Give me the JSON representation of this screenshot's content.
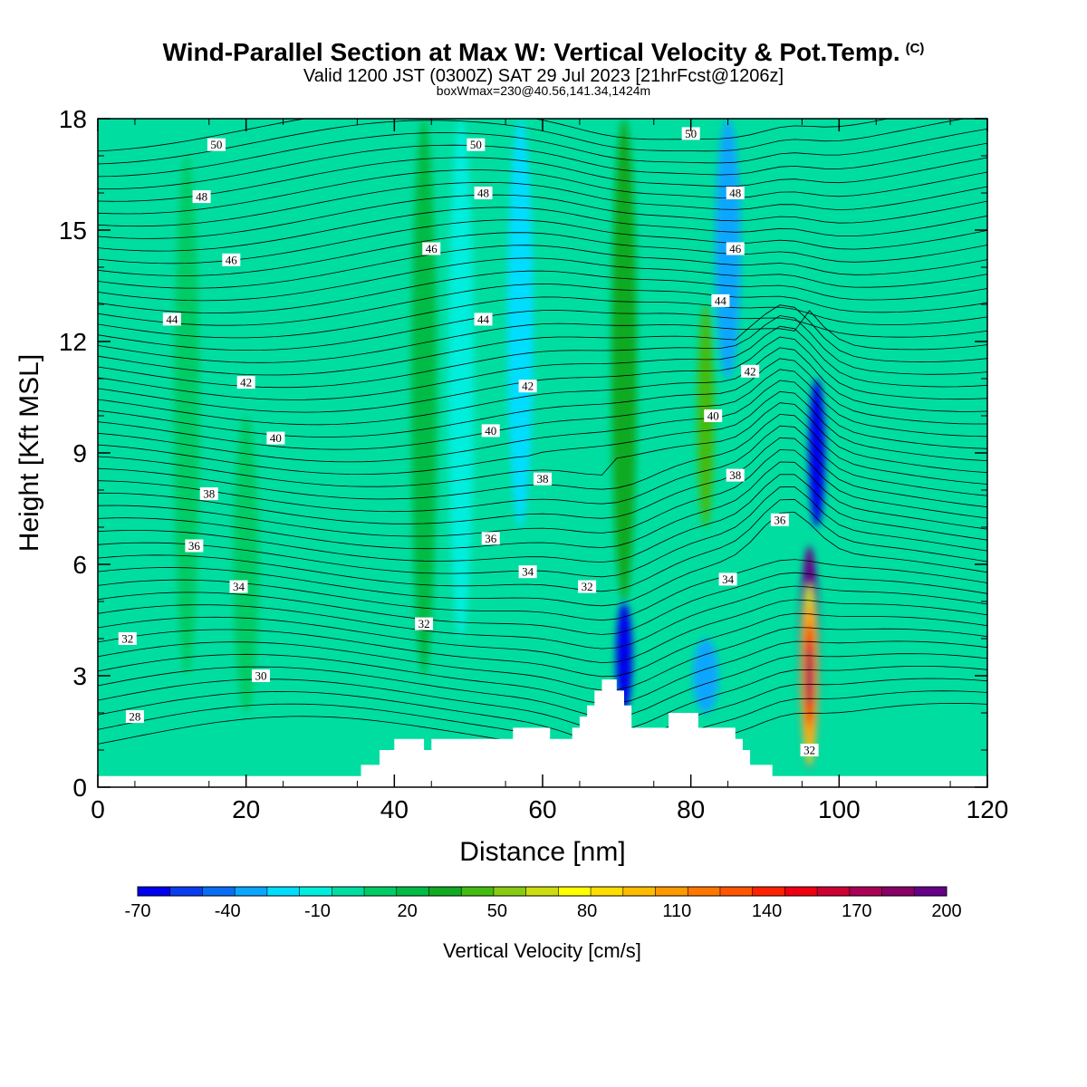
{
  "chart_data": {
    "type": "heatmap",
    "title": "Wind-Parallel Section at Max W: Vertical Velocity & Pot.Temp.",
    "copyright_mark": "(C)",
    "subtitle": "Valid 1200 JST (0300Z) SAT 29 Jul 2023 [21hrFcst@1206z]",
    "subtitle2": "boxWmax=230@40.56,141.34,1424m",
    "xlabel": "Distance [nm]",
    "ylabel": "Height [Kft MSL]",
    "xlim": [
      0,
      120
    ],
    "ylim": [
      0,
      18
    ],
    "x_ticks": [
      "0",
      "20",
      "40",
      "60",
      "80",
      "100",
      "120"
    ],
    "y_ticks": [
      "0",
      "3",
      "6",
      "9",
      "12",
      "15",
      "18"
    ],
    "colorbar": {
      "title": "Vertical Velocity [cm/s]",
      "tick_labels": [
        "-70",
        "-40",
        "-10",
        "20",
        "50",
        "80",
        "110",
        "140",
        "170",
        "200"
      ],
      "colors": [
        "#0000ee",
        "#0a3cf0",
        "#0a6ef5",
        "#0aa6ff",
        "#00ddff",
        "#00eedd",
        "#00dda0",
        "#00cc66",
        "#00bb44",
        "#11aa22",
        "#44bb11",
        "#88cc11",
        "#ccdd11",
        "#ffff00",
        "#ffdd00",
        "#ffbb00",
        "#ff9900",
        "#ff7700",
        "#ff5500",
        "#ff2200",
        "#ee0011",
        "#cc0033",
        "#aa0055",
        "#880066",
        "#660088"
      ]
    },
    "background_level_cm_s": 0,
    "velocity_features": [
      {
        "x": 12,
        "y_bottom": 3,
        "y_top": 17,
        "w_cm_s": 10
      },
      {
        "x": 20,
        "y_bottom": 2,
        "y_top": 10,
        "w_cm_s": 10
      },
      {
        "x": 44,
        "y_bottom": 3,
        "y_top": 18,
        "w_cm_s": 20
      },
      {
        "x": 49,
        "y_bottom": 4,
        "y_top": 18,
        "w_cm_s": -10
      },
      {
        "x": 57,
        "y_bottom": 7,
        "y_top": 18,
        "w_cm_s": -20
      },
      {
        "x": 71,
        "y_bottom": 2,
        "y_top": 5,
        "w_cm_s": -60
      },
      {
        "x": 71,
        "y_bottom": 5,
        "y_top": 18,
        "w_cm_s": 30
      },
      {
        "x": 82,
        "y_bottom": 2,
        "y_top": 4,
        "w_cm_s": -30
      },
      {
        "x": 82,
        "y_bottom": 7,
        "y_top": 13,
        "w_cm_s": 40
      },
      {
        "x": 85,
        "y_bottom": 11,
        "y_top": 18,
        "w_cm_s": -30
      },
      {
        "x": 96,
        "y_bottom": 0.5,
        "y_top": 6.5,
        "w_cm_s": 200
      },
      {
        "x": 97,
        "y_bottom": 7,
        "y_top": 11,
        "w_cm_s": -60
      }
    ],
    "terrain": [
      [
        0,
        0.3
      ],
      [
        35.5,
        0.3
      ],
      [
        35.5,
        0.6
      ],
      [
        38,
        0.6
      ],
      [
        38,
        1.0
      ],
      [
        40,
        1.0
      ],
      [
        40,
        1.3
      ],
      [
        44,
        1.3
      ],
      [
        44,
        1.0
      ],
      [
        45,
        1.0
      ],
      [
        45,
        1.3
      ],
      [
        56,
        1.3
      ],
      [
        56,
        1.6
      ],
      [
        61,
        1.6
      ],
      [
        61,
        1.3
      ],
      [
        64,
        1.3
      ],
      [
        64,
        1.6
      ],
      [
        65,
        1.6
      ],
      [
        65,
        1.9
      ],
      [
        66,
        1.9
      ],
      [
        66,
        2.2
      ],
      [
        67,
        2.2
      ],
      [
        67,
        2.6
      ],
      [
        68,
        2.6
      ],
      [
        68,
        2.9
      ],
      [
        70,
        2.9
      ],
      [
        70,
        2.6
      ],
      [
        71,
        2.6
      ],
      [
        71,
        2.2
      ],
      [
        72,
        2.2
      ],
      [
        72,
        1.6
      ],
      [
        77,
        1.6
      ],
      [
        77,
        2.0
      ],
      [
        81,
        2.0
      ],
      [
        81,
        1.6
      ],
      [
        86,
        1.6
      ],
      [
        86,
        1.3
      ],
      [
        87,
        1.3
      ],
      [
        87,
        1.0
      ],
      [
        88,
        1.0
      ],
      [
        88,
        0.6
      ],
      [
        91,
        0.6
      ],
      [
        91,
        0.3
      ],
      [
        120,
        0.3
      ]
    ],
    "theta_contours": [
      {
        "label": "28",
        "lx": 5,
        "ly": 1.9
      },
      {
        "label": "30",
        "lx": 22,
        "ly": 3.0
      },
      {
        "label": "32",
        "lx": 4,
        "ly": 4.0
      },
      {
        "label": "32",
        "lx": 44,
        "ly": 4.4
      },
      {
        "label": "32",
        "lx": 66,
        "ly": 5.4
      },
      {
        "label": "32",
        "lx": 96,
        "ly": 1.0
      },
      {
        "label": "34",
        "lx": 19,
        "ly": 5.4
      },
      {
        "label": "34",
        "lx": 58,
        "ly": 5.8
      },
      {
        "label": "34",
        "lx": 85,
        "ly": 5.6
      },
      {
        "label": "36",
        "lx": 13,
        "ly": 6.5
      },
      {
        "label": "36",
        "lx": 53,
        "ly": 6.7
      },
      {
        "label": "36",
        "lx": 92,
        "ly": 7.2
      },
      {
        "label": "38",
        "lx": 15,
        "ly": 7.9
      },
      {
        "label": "38",
        "lx": 60,
        "ly": 8.3
      },
      {
        "label": "38",
        "lx": 86,
        "ly": 8.4
      },
      {
        "label": "40",
        "lx": 24,
        "ly": 9.4
      },
      {
        "label": "40",
        "lx": 53,
        "ly": 9.6
      },
      {
        "label": "40",
        "lx": 83,
        "ly": 10.0
      },
      {
        "label": "42",
        "lx": 20,
        "ly": 10.9
      },
      {
        "label": "42",
        "lx": 58,
        "ly": 10.8
      },
      {
        "label": "42",
        "lx": 88,
        "ly": 11.2
      },
      {
        "label": "44",
        "lx": 10,
        "ly": 12.6
      },
      {
        "label": "44",
        "lx": 52,
        "ly": 12.6
      },
      {
        "label": "44",
        "lx": 84,
        "ly": 13.1
      },
      {
        "label": "46",
        "lx": 18,
        "ly": 14.2
      },
      {
        "label": "46",
        "lx": 45,
        "ly": 14.5
      },
      {
        "label": "46",
        "lx": 86,
        "ly": 14.5
      },
      {
        "label": "48",
        "lx": 14,
        "ly": 15.9
      },
      {
        "label": "48",
        "lx": 52,
        "ly": 16.0
      },
      {
        "label": "48",
        "lx": 86,
        "ly": 16.0
      },
      {
        "label": "50",
        "lx": 16,
        "ly": 17.3
      },
      {
        "label": "50",
        "lx": 51,
        "ly": 17.3
      },
      {
        "label": "50",
        "lx": 80,
        "ly": 17.6
      }
    ]
  }
}
